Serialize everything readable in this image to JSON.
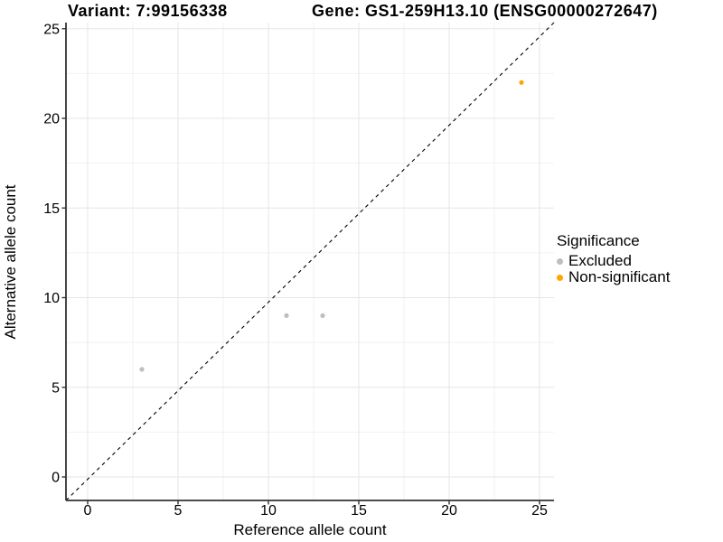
{
  "figure": {
    "title_variant": "Variant: 7:99156338",
    "title_gene": "Gene: GS1-259H13.10 (ENSG00000272647)"
  },
  "chart_data": {
    "type": "scatter",
    "title": "Variant: 7:99156338   Gene: GS1-259H13.10 (ENSG00000272647)",
    "xlabel": "Reference allele count",
    "ylabel": "Alternative allele count",
    "xlim": [
      0,
      25
    ],
    "ylim": [
      0,
      25
    ],
    "x_ticks": [
      0,
      5,
      10,
      15,
      20,
      25
    ],
    "y_ticks": [
      0,
      5,
      10,
      15,
      20,
      25
    ],
    "x_minor_ticks": [
      2.5,
      7.5,
      12.5,
      17.5,
      22.5
    ],
    "y_minor_ticks": [
      2.5,
      7.5,
      12.5,
      17.5,
      22.5
    ],
    "grid": "major-and-minor",
    "abline": {
      "slope": 1,
      "intercept": 0,
      "style": "dashed",
      "color": "#000000"
    },
    "series": [
      {
        "name": "Excluded",
        "color": "#BEBEBE",
        "points": [
          [
            3,
            6
          ],
          [
            11,
            9
          ],
          [
            13,
            9
          ]
        ]
      },
      {
        "name": "Non-significant",
        "color": "#FFA500",
        "points": [
          [
            24,
            22
          ]
        ]
      }
    ],
    "legend": {
      "title": "Significance",
      "position": "right"
    },
    "colors": {
      "background": "#FFFFFF",
      "major_grid": "#E6E6E6",
      "minor_grid": "#F2F2F2",
      "axis_line": "#333333",
      "tick_text": "#000000"
    }
  }
}
